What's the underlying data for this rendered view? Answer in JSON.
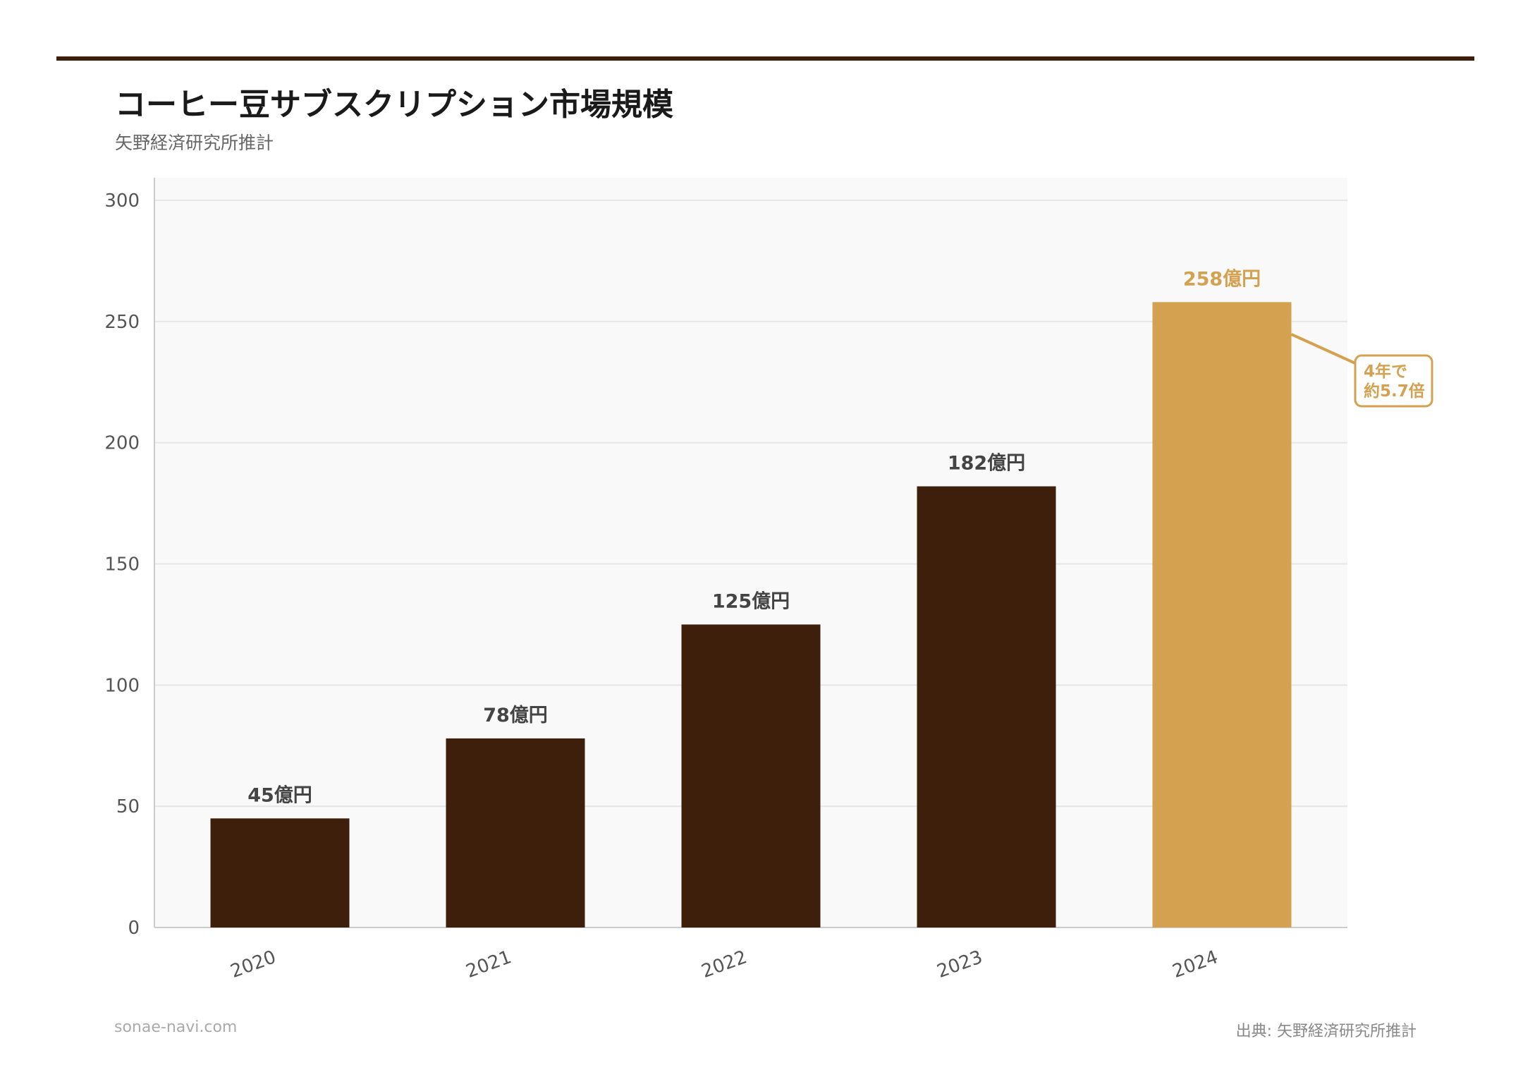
{
  "title": "コーヒー豆サブスクリプション市場規模",
  "subtitle": "矢野経済研究所推計",
  "footer": {
    "site": "sonae-navi.com",
    "source": "出典: 矢野経済研究所推計"
  },
  "colors": {
    "bar": "#3d1f0c",
    "highlight": "#d4a150",
    "accent_bar": "#3d1f0c",
    "label": "#444444",
    "plot_bg": "#f9f9f9"
  },
  "chart_data": {
    "type": "bar",
    "categories": [
      "2020",
      "2021",
      "2022",
      "2023",
      "2024"
    ],
    "values": [
      45,
      78,
      125,
      182,
      258
    ],
    "data_labels": [
      "45億円",
      "78億円",
      "125億円",
      "182億円",
      "258億円"
    ],
    "highlight_index": 4,
    "ylim": [
      0,
      300
    ],
    "yticks": [
      0,
      50,
      100,
      150,
      200,
      250,
      300
    ],
    "grid": true,
    "annotation": {
      "lines": [
        "4年で",
        "約5.7倍"
      ],
      "target": "2024"
    }
  }
}
